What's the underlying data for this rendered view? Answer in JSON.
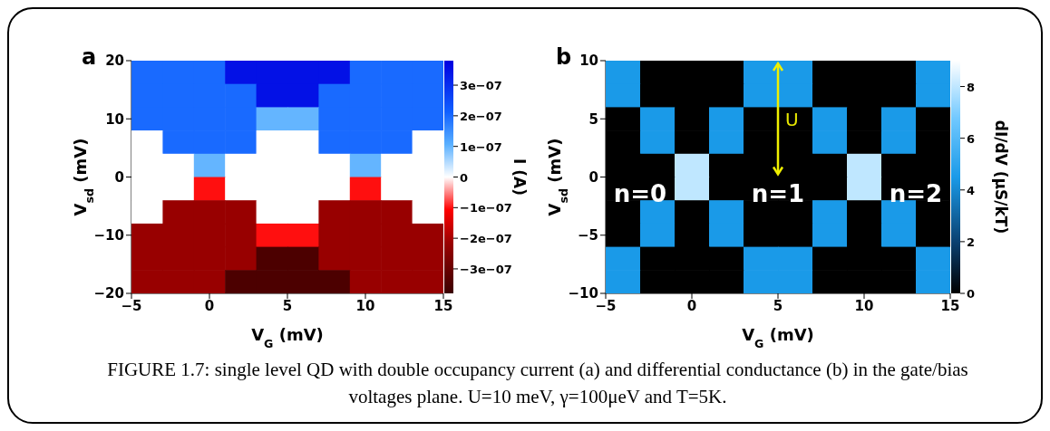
{
  "chart_data": [
    {
      "type": "heatmap",
      "title": "a",
      "xlabel": "V$_{G}$ (mV)",
      "ylabel": "V$_{sd}$ (mV)",
      "clabel": "I (A)",
      "annotations": [
        "FIGURE 1.7: single level QD with double occupancy current (a) and differential conductance (b) in the gate/bias voltages plane. U=10 meV, γ=100μeV and T=5K."
      ],
      "x": [
        -4,
        -2,
        0,
        2,
        4,
        6,
        8,
        10,
        12,
        14
      ],
      "xlim": [
        -5,
        15
      ],
      "xticks": [
        -5,
        0,
        5,
        10,
        15
      ],
      "ylim": [
        -20,
        20
      ],
      "yticks": [
        -20,
        -10,
        0,
        10,
        20
      ],
      "clim": [
        -3.8e-07,
        3.8e-07
      ],
      "cticks": [
        {
          "value": 3e-07,
          "label": "3e−07"
        },
        {
          "value": 2e-07,
          "label": "2e−07"
        },
        {
          "value": 1e-07,
          "label": "1e−07"
        },
        0,
        {
          "value": -1e-07,
          "label": "−1e−07"
        },
        {
          "value": -2e-07,
          "label": "−2e−07"
        },
        {
          "value": -3e-07,
          "label": "−3e−07"
        }
      ],
      "cells": [
        [
          2e-07,
          2e-07,
          2e-07,
          3.5e-07,
          3.5e-07,
          3.5e-07,
          3.5e-07,
          2e-07,
          2e-07,
          2e-07
        ],
        [
          2e-07,
          2e-07,
          2e-07,
          2e-07,
          3.5e-07,
          3.5e-07,
          2e-07,
          2e-07,
          2e-07,
          2e-07
        ],
        [
          2e-07,
          2e-07,
          2e-07,
          2e-07,
          1e-07,
          1e-07,
          2e-07,
          2e-07,
          2e-07,
          2e-07
        ],
        [
          0,
          2e-07,
          2e-07,
          2e-07,
          0,
          0,
          2e-07,
          2e-07,
          2e-07,
          0
        ],
        [
          0,
          0,
          1e-07,
          0,
          0,
          0,
          0,
          1e-07,
          0,
          0
        ],
        [
          0,
          0,
          -1e-07,
          0,
          0,
          0,
          0,
          -1e-07,
          0,
          0
        ],
        [
          0,
          -2.2e-07,
          -2.2e-07,
          -2.2e-07,
          0,
          0,
          -2.2e-07,
          -2.2e-07,
          -2.2e-07,
          0
        ],
        [
          -2.2e-07,
          -2.2e-07,
          -2.2e-07,
          -2.2e-07,
          -1e-07,
          -1e-07,
          -2.2e-07,
          -2.2e-07,
          -2.2e-07,
          -2.2e-07
        ],
        [
          -2.2e-07,
          -2.2e-07,
          -2.2e-07,
          -2.2e-07,
          -3.5e-07,
          -3.5e-07,
          -2.2e-07,
          -2.2e-07,
          -2.2e-07,
          -2.2e-07
        ],
        [
          -2.2e-07,
          -2.2e-07,
          -2.2e-07,
          -3.5e-07,
          -3.5e-07,
          -3.5e-07,
          -3.5e-07,
          -2.2e-07,
          -2.2e-07,
          -2.2e-07
        ]
      ]
    },
    {
      "type": "heatmap",
      "title": "b",
      "xlabel": "V$_{G}$ (mV)",
      "ylabel": "V$_{sd}$ (mV)",
      "clabel": "dI/dV (μS/kT)",
      "x": [
        -4,
        -2,
        0,
        2,
        4,
        6,
        8,
        10,
        12,
        14
      ],
      "xlim": [
        -5,
        15
      ],
      "xticks": [
        -5,
        0,
        5,
        10,
        15
      ],
      "ylim": [
        -10,
        10
      ],
      "yticks": [
        -10,
        -5,
        0,
        5,
        10
      ],
      "clim": [
        0,
        9
      ],
      "cticks": [
        0,
        2,
        4,
        6,
        8
      ],
      "cells": [
        [
          4.5,
          0,
          0,
          0,
          4.5,
          4.5,
          0,
          0,
          0,
          4.5
        ],
        [
          4.5,
          0,
          0,
          0,
          4.5,
          4.5,
          0,
          0,
          0,
          4.5
        ],
        [
          0,
          4.5,
          0,
          4.5,
          0,
          0,
          4.5,
          0,
          4.5,
          0
        ],
        [
          0,
          4.5,
          0,
          4.5,
          0,
          0,
          4.5,
          0,
          4.5,
          0
        ],
        [
          0,
          0,
          8,
          0,
          0,
          0,
          0,
          8,
          0,
          0
        ],
        [
          0,
          0,
          8,
          0,
          0,
          0,
          0,
          8,
          0,
          0
        ],
        [
          0,
          4.5,
          0,
          4.5,
          0,
          0,
          4.5,
          0,
          4.5,
          0
        ],
        [
          0,
          4.5,
          0,
          4.5,
          0,
          0,
          4.5,
          0,
          4.5,
          0
        ],
        [
          4.5,
          0,
          0,
          0,
          4.5,
          4.5,
          0,
          0,
          0,
          4.5
        ],
        [
          4.5,
          0,
          0,
          0,
          4.5,
          4.5,
          0,
          0,
          0,
          4.5
        ]
      ],
      "annotations": [
        "n=0",
        "n=1",
        "n=2",
        "U"
      ]
    }
  ]
}
